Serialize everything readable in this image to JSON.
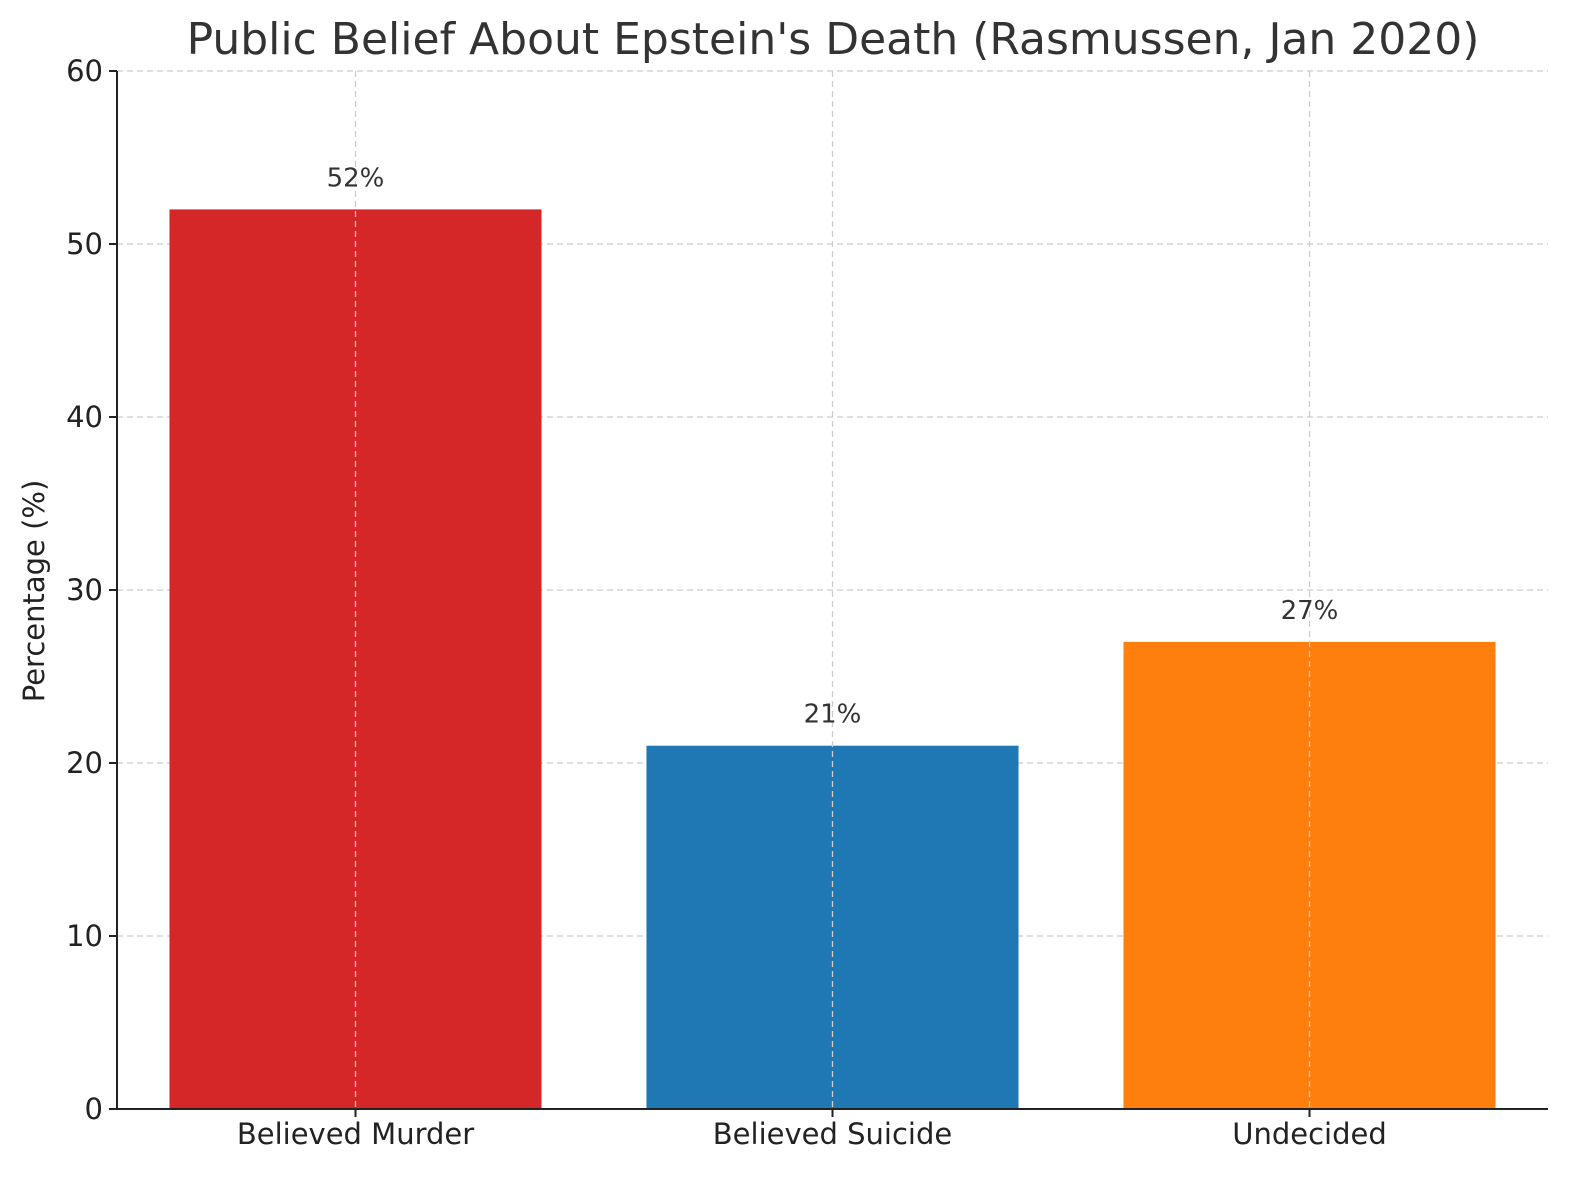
{
  "chart_data": {
    "type": "bar",
    "title": "Public Belief About Epstein's Death (Rasmussen, Jan 2020)",
    "xlabel": "",
    "ylabel": "Percentage (%)",
    "categories": [
      "Believed Murder",
      "Believed Suicide",
      "Undecided"
    ],
    "values": [
      52,
      21,
      27
    ],
    "data_labels": [
      "52%",
      "21%",
      "27%"
    ],
    "colors": [
      "#d62728",
      "#1f77b4",
      "#ff7f0e"
    ],
    "ylim": [
      0,
      60
    ],
    "yticks": [
      0,
      10,
      20,
      30,
      40,
      50,
      60
    ],
    "grid": true,
    "grid_style": "dashed",
    "legend": "none"
  }
}
